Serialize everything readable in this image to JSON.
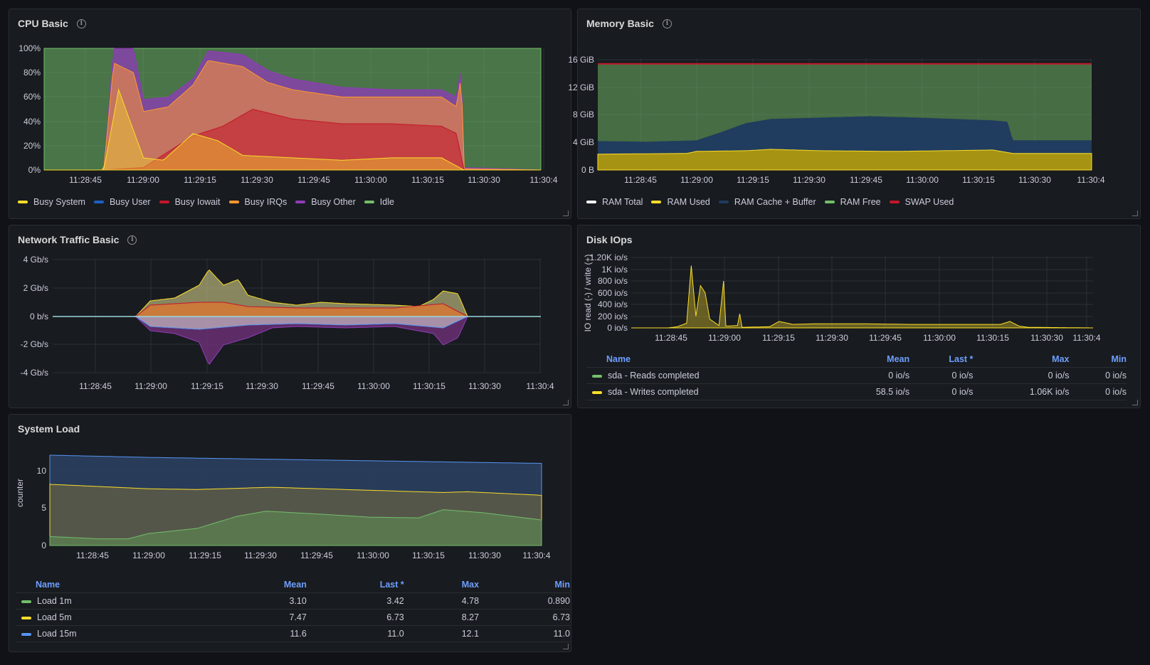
{
  "xticks": [
    "11:28:45",
    "11:29:00",
    "11:29:15",
    "11:29:30",
    "11:29:45",
    "11:30:00",
    "11:30:15",
    "11:30:30",
    "11:30:4"
  ],
  "colors": {
    "green": "#73bf69",
    "yellow": "#fade2a",
    "blue": "#5794f2",
    "darkblue": "#1f3a60",
    "red": "#c4162a",
    "orange": "#ff9830",
    "purple": "#8f3bb8"
  },
  "panels": {
    "cpu": {
      "title": "CPU Basic",
      "yticks": [
        "100%",
        "80%",
        "60%",
        "40%",
        "20%",
        "0%"
      ],
      "legend": [
        {
          "label": "Busy System",
          "color": "#fade2a"
        },
        {
          "label": "Busy User",
          "color": "#1f60c4"
        },
        {
          "label": "Busy Iowait",
          "color": "#c4162a"
        },
        {
          "label": "Busy IRQs",
          "color": "#ff9830"
        },
        {
          "label": "Busy Other",
          "color": "#8f3bb8"
        },
        {
          "label": "Idle",
          "color": "#73bf69"
        }
      ]
    },
    "memory": {
      "title": "Memory Basic",
      "yticks": [
        "16 GiB",
        "12 GiB",
        "8 GiB",
        "4 GiB",
        "0 B"
      ],
      "legend": [
        {
          "label": "RAM Total",
          "color": "#ffffff"
        },
        {
          "label": "RAM Used",
          "color": "#fade2a"
        },
        {
          "label": "RAM Cache + Buffer",
          "color": "#1f3a60"
        },
        {
          "label": "RAM Free",
          "color": "#73bf69"
        },
        {
          "label": "SWAP Used",
          "color": "#c4162a"
        }
      ]
    },
    "network": {
      "title": "Network Traffic Basic",
      "yticks": [
        "4 Gb/s",
        "2 Gb/s",
        "0 b/s",
        "-2 Gb/s",
        "-4 Gb/s"
      ]
    },
    "disk": {
      "title": "Disk IOps",
      "ylabel": "IO read (-) / write (+)",
      "yticks": [
        "1.20K io/s",
        "1K io/s",
        "800 io/s",
        "600 io/s",
        "400 io/s",
        "200 io/s",
        "0 io/s"
      ],
      "columns": [
        "Name",
        "Mean",
        "Last *",
        "Max",
        "Min"
      ],
      "rows": [
        {
          "name": "sda - Reads completed",
          "color": "#73bf69",
          "mean": "0 io/s",
          "last": "0 io/s",
          "max": "0 io/s",
          "min": "0 io/s"
        },
        {
          "name": "sda - Writes completed",
          "color": "#fade2a",
          "mean": "58.5 io/s",
          "last": "0 io/s",
          "max": "1.06K io/s",
          "min": "0 io/s"
        }
      ]
    },
    "load": {
      "title": "System Load",
      "ylabel": "counter",
      "yticks": [
        "10",
        "5",
        "0"
      ],
      "columns": [
        "Name",
        "Mean",
        "Last *",
        "Max",
        "Min"
      ],
      "rows": [
        {
          "name": "Load 1m",
          "color": "#73bf69",
          "mean": "3.10",
          "last": "3.42",
          "max": "4.78",
          "min": "0.890"
        },
        {
          "name": "Load 5m",
          "color": "#fade2a",
          "mean": "7.47",
          "last": "6.73",
          "max": "8.27",
          "min": "6.73"
        },
        {
          "name": "Load 15m",
          "color": "#5794f2",
          "mean": "11.6",
          "last": "11.0",
          "max": "12.1",
          "min": "11.0"
        }
      ]
    }
  }
}
